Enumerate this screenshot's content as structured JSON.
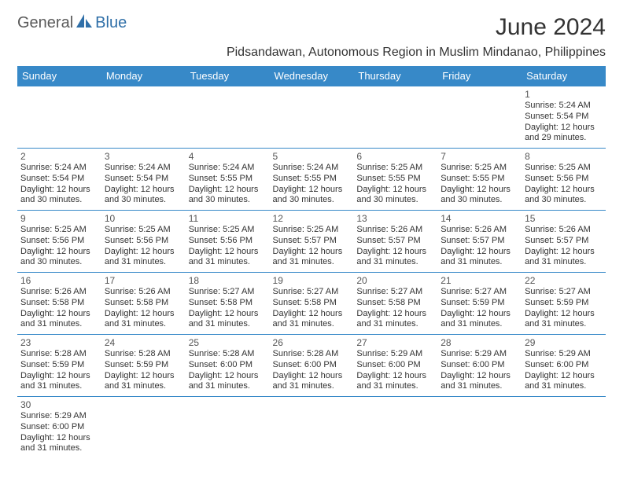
{
  "logo": {
    "text_gray": "General",
    "text_blue": "Blue"
  },
  "title": "June 2024",
  "subtitle": "Pidsandawan, Autonomous Region in Muslim Mindanao, Philippines",
  "colors": {
    "header_bg": "#3789c8",
    "header_text": "#ffffff",
    "border": "#3789c8",
    "text": "#333333",
    "logo_gray": "#5a5a5a",
    "logo_blue": "#2f6fa8",
    "background": "#ffffff"
  },
  "day_headers": [
    "Sunday",
    "Monday",
    "Tuesday",
    "Wednesday",
    "Thursday",
    "Friday",
    "Saturday"
  ],
  "weeks": [
    [
      null,
      null,
      null,
      null,
      null,
      null,
      {
        "n": "1",
        "sunrise": "Sunrise: 5:24 AM",
        "sunset": "Sunset: 5:54 PM",
        "dl1": "Daylight: 12 hours",
        "dl2": "and 29 minutes."
      }
    ],
    [
      {
        "n": "2",
        "sunrise": "Sunrise: 5:24 AM",
        "sunset": "Sunset: 5:54 PM",
        "dl1": "Daylight: 12 hours",
        "dl2": "and 30 minutes."
      },
      {
        "n": "3",
        "sunrise": "Sunrise: 5:24 AM",
        "sunset": "Sunset: 5:54 PM",
        "dl1": "Daylight: 12 hours",
        "dl2": "and 30 minutes."
      },
      {
        "n": "4",
        "sunrise": "Sunrise: 5:24 AM",
        "sunset": "Sunset: 5:55 PM",
        "dl1": "Daylight: 12 hours",
        "dl2": "and 30 minutes."
      },
      {
        "n": "5",
        "sunrise": "Sunrise: 5:24 AM",
        "sunset": "Sunset: 5:55 PM",
        "dl1": "Daylight: 12 hours",
        "dl2": "and 30 minutes."
      },
      {
        "n": "6",
        "sunrise": "Sunrise: 5:25 AM",
        "sunset": "Sunset: 5:55 PM",
        "dl1": "Daylight: 12 hours",
        "dl2": "and 30 minutes."
      },
      {
        "n": "7",
        "sunrise": "Sunrise: 5:25 AM",
        "sunset": "Sunset: 5:55 PM",
        "dl1": "Daylight: 12 hours",
        "dl2": "and 30 minutes."
      },
      {
        "n": "8",
        "sunrise": "Sunrise: 5:25 AM",
        "sunset": "Sunset: 5:56 PM",
        "dl1": "Daylight: 12 hours",
        "dl2": "and 30 minutes."
      }
    ],
    [
      {
        "n": "9",
        "sunrise": "Sunrise: 5:25 AM",
        "sunset": "Sunset: 5:56 PM",
        "dl1": "Daylight: 12 hours",
        "dl2": "and 30 minutes."
      },
      {
        "n": "10",
        "sunrise": "Sunrise: 5:25 AM",
        "sunset": "Sunset: 5:56 PM",
        "dl1": "Daylight: 12 hours",
        "dl2": "and 31 minutes."
      },
      {
        "n": "11",
        "sunrise": "Sunrise: 5:25 AM",
        "sunset": "Sunset: 5:56 PM",
        "dl1": "Daylight: 12 hours",
        "dl2": "and 31 minutes."
      },
      {
        "n": "12",
        "sunrise": "Sunrise: 5:25 AM",
        "sunset": "Sunset: 5:57 PM",
        "dl1": "Daylight: 12 hours",
        "dl2": "and 31 minutes."
      },
      {
        "n": "13",
        "sunrise": "Sunrise: 5:26 AM",
        "sunset": "Sunset: 5:57 PM",
        "dl1": "Daylight: 12 hours",
        "dl2": "and 31 minutes."
      },
      {
        "n": "14",
        "sunrise": "Sunrise: 5:26 AM",
        "sunset": "Sunset: 5:57 PM",
        "dl1": "Daylight: 12 hours",
        "dl2": "and 31 minutes."
      },
      {
        "n": "15",
        "sunrise": "Sunrise: 5:26 AM",
        "sunset": "Sunset: 5:57 PM",
        "dl1": "Daylight: 12 hours",
        "dl2": "and 31 minutes."
      }
    ],
    [
      {
        "n": "16",
        "sunrise": "Sunrise: 5:26 AM",
        "sunset": "Sunset: 5:58 PM",
        "dl1": "Daylight: 12 hours",
        "dl2": "and 31 minutes."
      },
      {
        "n": "17",
        "sunrise": "Sunrise: 5:26 AM",
        "sunset": "Sunset: 5:58 PM",
        "dl1": "Daylight: 12 hours",
        "dl2": "and 31 minutes."
      },
      {
        "n": "18",
        "sunrise": "Sunrise: 5:27 AM",
        "sunset": "Sunset: 5:58 PM",
        "dl1": "Daylight: 12 hours",
        "dl2": "and 31 minutes."
      },
      {
        "n": "19",
        "sunrise": "Sunrise: 5:27 AM",
        "sunset": "Sunset: 5:58 PM",
        "dl1": "Daylight: 12 hours",
        "dl2": "and 31 minutes."
      },
      {
        "n": "20",
        "sunrise": "Sunrise: 5:27 AM",
        "sunset": "Sunset: 5:58 PM",
        "dl1": "Daylight: 12 hours",
        "dl2": "and 31 minutes."
      },
      {
        "n": "21",
        "sunrise": "Sunrise: 5:27 AM",
        "sunset": "Sunset: 5:59 PM",
        "dl1": "Daylight: 12 hours",
        "dl2": "and 31 minutes."
      },
      {
        "n": "22",
        "sunrise": "Sunrise: 5:27 AM",
        "sunset": "Sunset: 5:59 PM",
        "dl1": "Daylight: 12 hours",
        "dl2": "and 31 minutes."
      }
    ],
    [
      {
        "n": "23",
        "sunrise": "Sunrise: 5:28 AM",
        "sunset": "Sunset: 5:59 PM",
        "dl1": "Daylight: 12 hours",
        "dl2": "and 31 minutes."
      },
      {
        "n": "24",
        "sunrise": "Sunrise: 5:28 AM",
        "sunset": "Sunset: 5:59 PM",
        "dl1": "Daylight: 12 hours",
        "dl2": "and 31 minutes."
      },
      {
        "n": "25",
        "sunrise": "Sunrise: 5:28 AM",
        "sunset": "Sunset: 6:00 PM",
        "dl1": "Daylight: 12 hours",
        "dl2": "and 31 minutes."
      },
      {
        "n": "26",
        "sunrise": "Sunrise: 5:28 AM",
        "sunset": "Sunset: 6:00 PM",
        "dl1": "Daylight: 12 hours",
        "dl2": "and 31 minutes."
      },
      {
        "n": "27",
        "sunrise": "Sunrise: 5:29 AM",
        "sunset": "Sunset: 6:00 PM",
        "dl1": "Daylight: 12 hours",
        "dl2": "and 31 minutes."
      },
      {
        "n": "28",
        "sunrise": "Sunrise: 5:29 AM",
        "sunset": "Sunset: 6:00 PM",
        "dl1": "Daylight: 12 hours",
        "dl2": "and 31 minutes."
      },
      {
        "n": "29",
        "sunrise": "Sunrise: 5:29 AM",
        "sunset": "Sunset: 6:00 PM",
        "dl1": "Daylight: 12 hours",
        "dl2": "and 31 minutes."
      }
    ],
    [
      {
        "n": "30",
        "sunrise": "Sunrise: 5:29 AM",
        "sunset": "Sunset: 6:00 PM",
        "dl1": "Daylight: 12 hours",
        "dl2": "and 31 minutes."
      },
      null,
      null,
      null,
      null,
      null,
      null
    ]
  ]
}
